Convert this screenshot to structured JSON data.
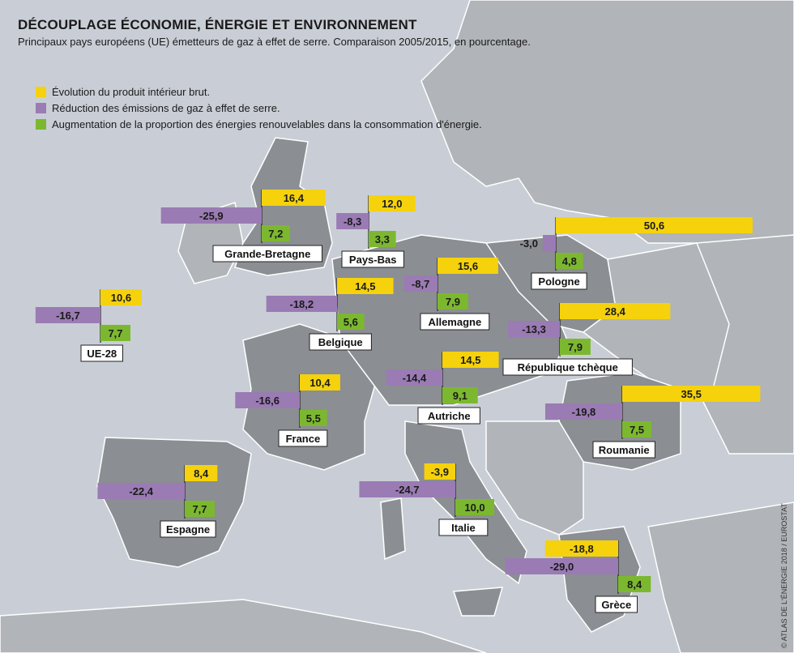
{
  "title": "DÉCOUPLAGE ÉCONOMIE, ÉNERGIE ET ENVIRONNEMENT",
  "subtitle": "Principaux pays européens (UE) émetteurs de gaz à effet de serre. Comparaison 2005/2015, en pourcentage.",
  "credit": "© ATLAS DE L'ÉNERGIE 2018 / EUROSTAT",
  "colors": {
    "gdp": "#f5d20c",
    "emissions": "#9a7bb4",
    "renewables": "#7cb82f",
    "sea": "#c9ced6",
    "land_dark": "#8b8e92",
    "land_light": "#b1b4b8"
  },
  "legend": [
    {
      "key": "gdp",
      "label": "Évolution du produit intérieur brut."
    },
    {
      "key": "emissions",
      "label": "Réduction des émissions de gaz à effet de serre."
    },
    {
      "key": "renewables",
      "label": "Augmentation de la proportion des énergies renouvelables dans la consommation d'énergie."
    }
  ],
  "chart_data": {
    "type": "bar",
    "title": "DÉCOUPLAGE ÉCONOMIE, ÉNERGIE ET ENVIRONNEMENT",
    "categories": [
      "Grande-Bretagne",
      "Pays-Bas",
      "Pologne",
      "UE-28",
      "Belgique",
      "Allemagne",
      "République tchèque",
      "Autriche",
      "France",
      "Roumanie",
      "Espagne",
      "Italie",
      "Grèce"
    ],
    "series": [
      {
        "name": "Évolution du produit intérieur brut.",
        "labels": [
          "16,4",
          "12,0",
          "50,6",
          "10,6",
          "14,5",
          "15,6",
          "28,4",
          "14,5",
          "10,4",
          "35,5",
          "8,4",
          "-3,9",
          "-18,8"
        ],
        "values": [
          16.4,
          12.0,
          50.6,
          10.6,
          14.5,
          15.6,
          28.4,
          14.5,
          10.4,
          35.5,
          8.4,
          -3.9,
          -18.8
        ]
      },
      {
        "name": "Réduction des émissions de gaz à effet de serre.",
        "labels": [
          "-25,9",
          "-8,3",
          "-3,0",
          "-16,7",
          "-18,2",
          "-8,7",
          "-13,3",
          "-14,4",
          "-16,6",
          "-19,8",
          "-22,4",
          "-24,7",
          "-29,0"
        ],
        "values": [
          -25.9,
          -8.3,
          -3.0,
          -16.7,
          -18.2,
          -8.7,
          -13.3,
          -14.4,
          -16.6,
          -19.8,
          -22.4,
          -24.7,
          -29.0
        ]
      },
      {
        "name": "Augmentation de la proportion des énergies renouvelables dans la consommation d'énergie.",
        "labels": [
          "7,2",
          "3,3",
          "4,8",
          "7,7",
          "5,6",
          "7,9",
          "7,9",
          "9,1",
          "5,5",
          "7,5",
          "7,7",
          "10,0",
          "8,4"
        ],
        "values": [
          7.2,
          3.3,
          4.8,
          7.7,
          5.6,
          7.9,
          7.9,
          9.1,
          5.5,
          7.5,
          7.7,
          10.0,
          8.4
        ]
      }
    ]
  }
}
